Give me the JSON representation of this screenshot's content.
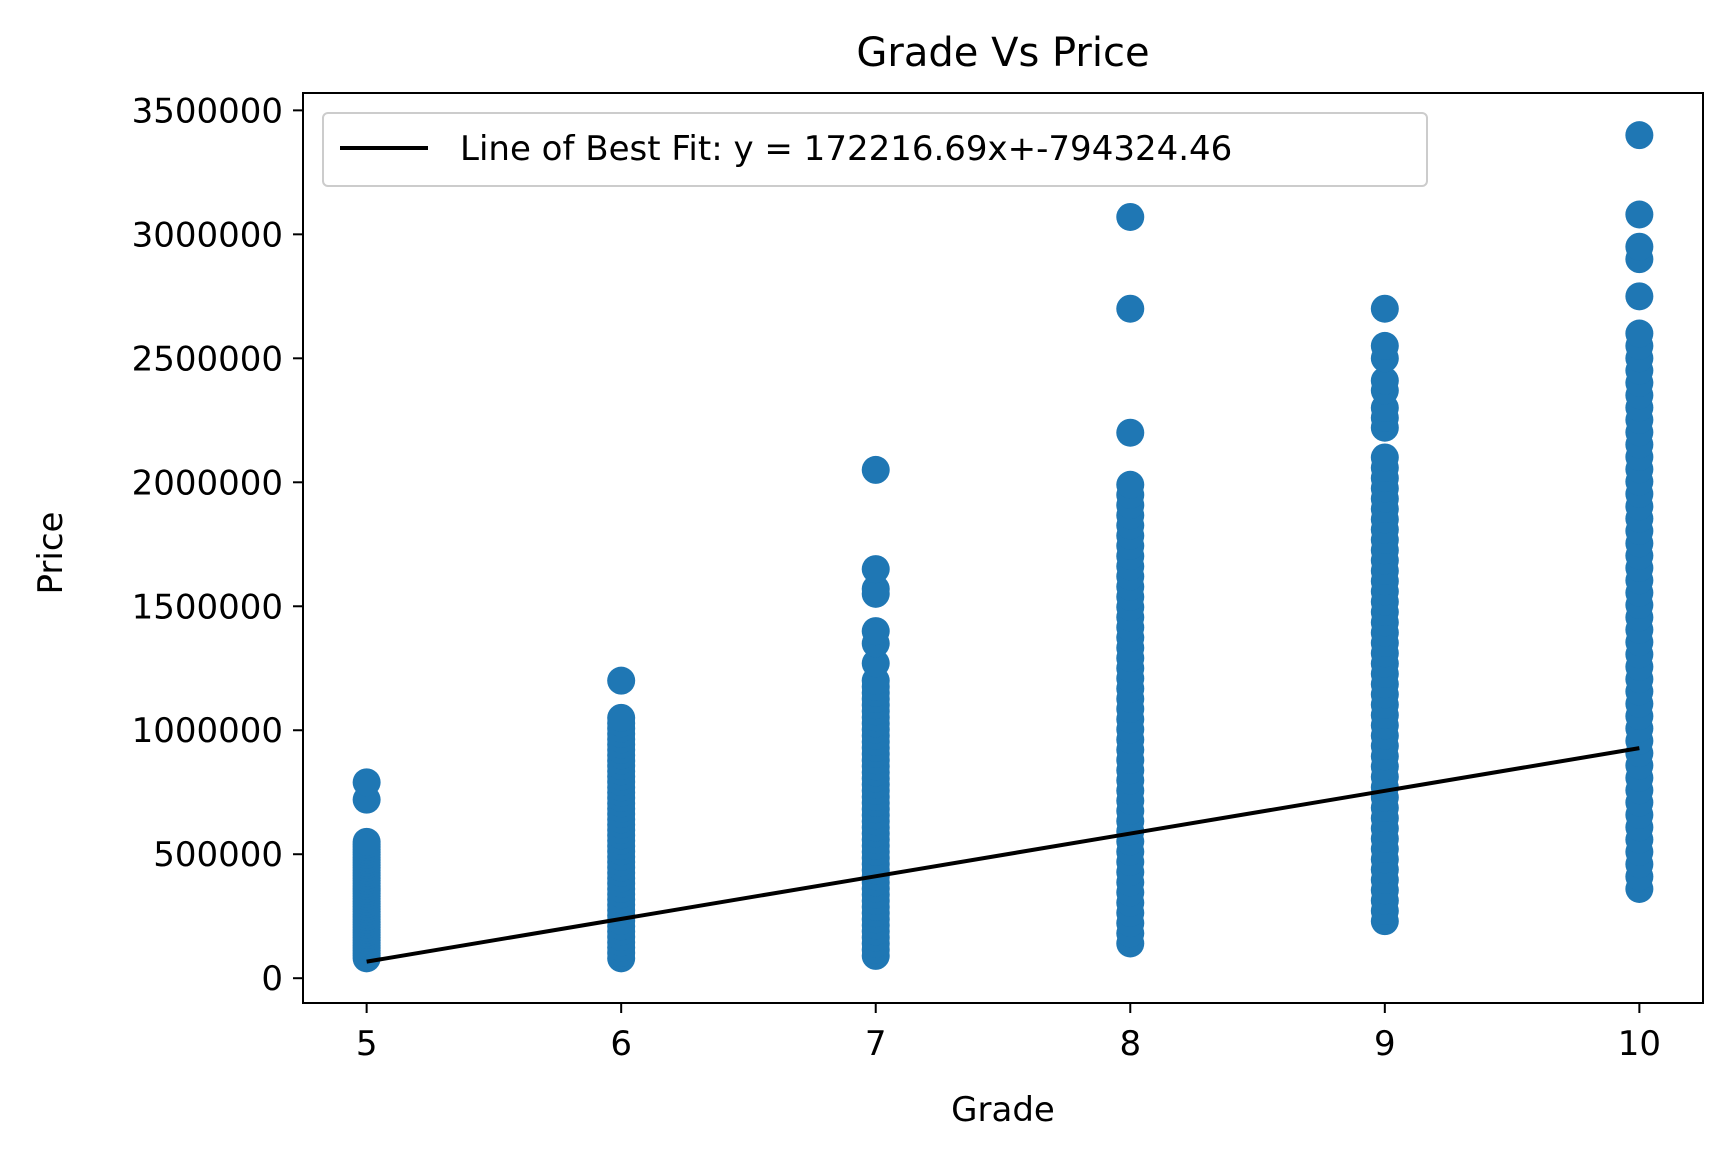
{
  "chart_data": {
    "type": "scatter",
    "title": "Grade Vs Price",
    "xlabel": "Grade",
    "ylabel": "Price",
    "xlim": [
      4.75,
      10.25
    ],
    "ylim": [
      -100000,
      3570000
    ],
    "x_ticks": [
      5,
      6,
      7,
      8,
      9,
      10
    ],
    "x_tick_labels": [
      "5",
      "6",
      "7",
      "8",
      "9",
      "10"
    ],
    "y_ticks": [
      0,
      500000,
      1000000,
      1500000,
      2000000,
      2500000,
      3000000,
      3500000
    ],
    "y_tick_labels": [
      "0",
      "500000",
      "1000000",
      "1500000",
      "2000000",
      "2500000",
      "3000000",
      "3500000"
    ],
    "grid": false,
    "legend_position": "top-left",
    "scatter_color": "#1f77b4",
    "line_color": "#000000",
    "scatter": {
      "ranges": [
        {
          "x": 5,
          "min": 80000,
          "max": 550000
        },
        {
          "x": 6,
          "min": 80000,
          "max": 1050000
        },
        {
          "x": 7,
          "min": 90000,
          "max": 1200000
        },
        {
          "x": 8,
          "min": 140000,
          "max": 1990000
        },
        {
          "x": 9,
          "min": 230000,
          "max": 2100000
        },
        {
          "x": 10,
          "min": 360000,
          "max": 2600000
        }
      ],
      "outliers": [
        {
          "x": 5,
          "y": 720000
        },
        {
          "x": 5,
          "y": 790000
        },
        {
          "x": 6,
          "y": 1200000
        },
        {
          "x": 7,
          "y": 1270000
        },
        {
          "x": 7,
          "y": 1350000
        },
        {
          "x": 7,
          "y": 1400000
        },
        {
          "x": 7,
          "y": 1550000
        },
        {
          "x": 7,
          "y": 1570000
        },
        {
          "x": 7,
          "y": 1650000
        },
        {
          "x": 7,
          "y": 2050000
        },
        {
          "x": 8,
          "y": 2200000
        },
        {
          "x": 8,
          "y": 2700000
        },
        {
          "x": 8,
          "y": 3070000
        },
        {
          "x": 9,
          "y": 2220000
        },
        {
          "x": 9,
          "y": 2260000
        },
        {
          "x": 9,
          "y": 2300000
        },
        {
          "x": 9,
          "y": 2370000
        },
        {
          "x": 9,
          "y": 2410000
        },
        {
          "x": 9,
          "y": 2500000
        },
        {
          "x": 9,
          "y": 2550000
        },
        {
          "x": 9,
          "y": 2700000
        },
        {
          "x": 10,
          "y": 2750000
        },
        {
          "x": 10,
          "y": 2900000
        },
        {
          "x": 10,
          "y": 2950000
        },
        {
          "x": 10,
          "y": 3080000
        },
        {
          "x": 10,
          "y": 3400000
        }
      ]
    },
    "line": {
      "name": "Line of Best Fit: y = 172216.69x+-794324.46",
      "slope": 172216.69,
      "intercept": -794324.46,
      "x": [
        5,
        10
      ]
    }
  }
}
